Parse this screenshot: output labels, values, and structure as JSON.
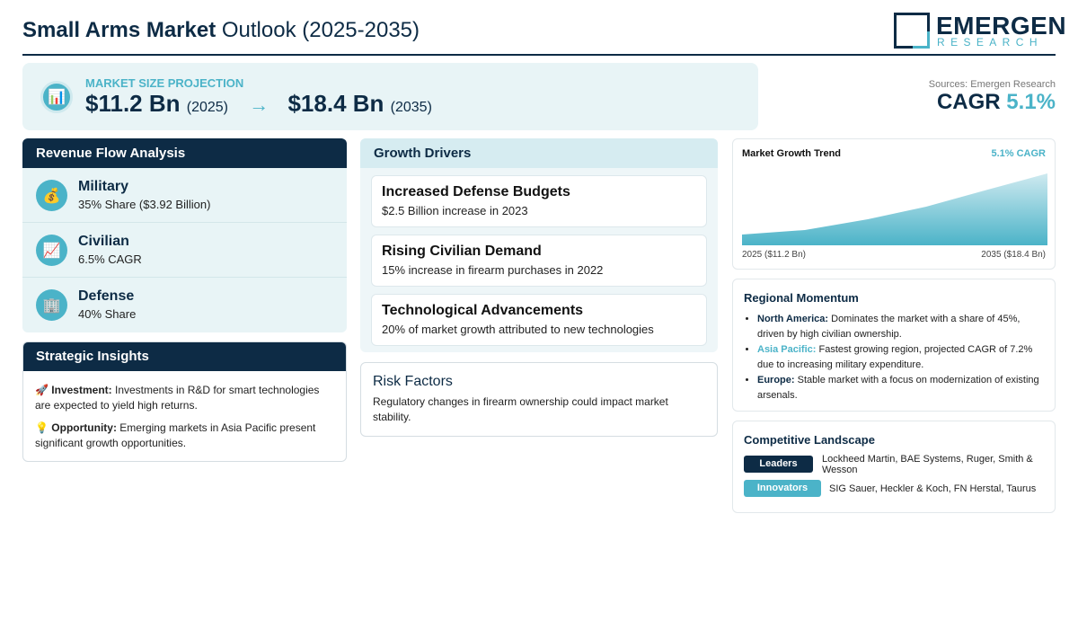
{
  "header": {
    "title_bold": "Small Arms Market",
    "title_rest": "Outlook (2025-2035)",
    "logo_name": "EMERGEN",
    "logo_sub": "RESEARCH"
  },
  "projection": {
    "label": "MARKET SIZE PROJECTION",
    "start_value": "$11.2 Bn",
    "start_year": "(2025)",
    "arrow": "→",
    "end_value": "$18.4 Bn",
    "end_year": "(2035)",
    "icon": "bar-chart-icon"
  },
  "summary": {
    "sources": "Sources: Emergen Research",
    "cagr_label": "CAGR",
    "cagr_value": "5.1%"
  },
  "revenue": {
    "title": "Revenue Flow Analysis",
    "items": [
      {
        "name": "Military",
        "sub": "35% Share ($3.92 Billion)",
        "icon": "money-bag-icon"
      },
      {
        "name": "Civilian",
        "sub": "6.5% CAGR",
        "icon": "trend-chart-icon"
      },
      {
        "name": "Defense",
        "sub": "40% Share",
        "icon": "building-icon"
      }
    ]
  },
  "strategic": {
    "title": "Strategic Insights",
    "items": [
      {
        "icon": "rocket-icon",
        "label": "Investment:",
        "text": "Investments in R&D for smart technologies are expected to yield high returns."
      },
      {
        "icon": "lightbulb-icon",
        "label": "Opportunity:",
        "text": "Emerging markets in Asia Pacific present significant growth opportunities."
      }
    ]
  },
  "drivers": {
    "title": "Growth Drivers",
    "items": [
      {
        "title": "Increased Defense Budgets",
        "sub": "$2.5 Billion increase in 2023"
      },
      {
        "title": "Rising Civilian Demand",
        "sub": "15% increase in firearm purchases in 2022"
      },
      {
        "title": "Technological Advancements",
        "sub": "20% of market growth attributed to new technologies"
      }
    ]
  },
  "risk": {
    "title": "Risk Factors",
    "text": "Regulatory changes in firearm ownership could impact market stability."
  },
  "trend": {
    "title": "Market Growth Trend",
    "cagr": "5.1% CAGR",
    "start_label": "2025 ($11.2 Bn)",
    "end_label": "2035 ($18.4 Bn)",
    "colors": {
      "top": "#cfeaf0",
      "bottom": "#4bb3c8"
    }
  },
  "regional": {
    "title": "Regional Momentum",
    "items": [
      {
        "name": "North America:",
        "text": "Dominates the market with a share of 45%, driven by high civilian ownership."
      },
      {
        "name": "Asia Pacific:",
        "text": "Fastest growing region, projected CAGR of 7.2% due to increasing military expenditure."
      },
      {
        "name": "Europe:",
        "text": "Stable market with a focus on modernization of existing arsenals."
      }
    ]
  },
  "competitive": {
    "title": "Competitive Landscape",
    "rows": [
      {
        "badge": "Leaders",
        "text": "Lockheed Martin, BAE Systems, Ruger, Smith & Wesson",
        "color": "#0d2b45"
      },
      {
        "badge": "Innovators",
        "text": "SIG Sauer, Heckler & Koch, FN Herstal, Taurus",
        "color": "#4bb3c8"
      }
    ]
  }
}
